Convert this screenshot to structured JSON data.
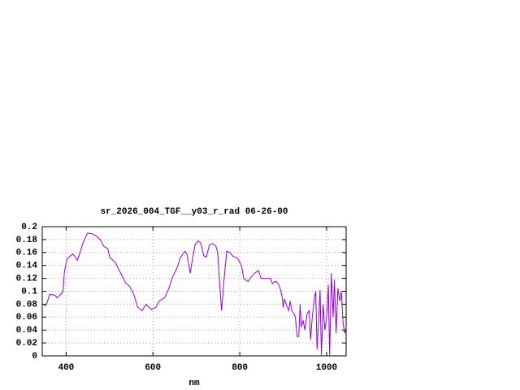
{
  "chart_data": {
    "type": "line",
    "title": "sr_2026_004_TGF__y03_r_rad 06-26-00",
    "x_label": "nm",
    "x": [
      349,
      355,
      362,
      374,
      379,
      387,
      393,
      396,
      402,
      415,
      422,
      426,
      432,
      439,
      449,
      460,
      471,
      481,
      486,
      496,
      501,
      513,
      528,
      537,
      546,
      556,
      565,
      575,
      584,
      596,
      607,
      614,
      627,
      637,
      644,
      652,
      655,
      663,
      674,
      678,
      686,
      691,
      697,
      704,
      710,
      717,
      723,
      730,
      738,
      745,
      749,
      753,
      758,
      764,
      770,
      777,
      785,
      794,
      804,
      809,
      819,
      824,
      834,
      843,
      849,
      860,
      871,
      875,
      881,
      885,
      890,
      895,
      898,
      900,
      903,
      907,
      910,
      913,
      916,
      920,
      925,
      928,
      932,
      936,
      939,
      942,
      946,
      950,
      955,
      960,
      963,
      967,
      972,
      975,
      978,
      982,
      985,
      988,
      992,
      996,
      1000,
      1004,
      1007,
      1011,
      1015,
      1018,
      1022,
      1026,
      1030,
      1034,
      1038,
      1042,
      1045
    ],
    "series": [
      {
        "name": "sr_2026_004_TGF__y03_r_rad",
        "color": "#9400d3",
        "values": [
          0.077,
          0.08,
          0.095,
          0.094,
          0.09,
          0.095,
          0.1,
          0.13,
          0.15,
          0.158,
          0.152,
          0.148,
          0.16,
          0.175,
          0.19,
          0.189,
          0.185,
          0.178,
          0.17,
          0.166,
          0.152,
          0.145,
          0.125,
          0.113,
          0.108,
          0.095,
          0.075,
          0.07,
          0.08,
          0.072,
          0.075,
          0.085,
          0.09,
          0.105,
          0.12,
          0.132,
          0.135,
          0.152,
          0.162,
          0.158,
          0.128,
          0.15,
          0.172,
          0.178,
          0.175,
          0.155,
          0.153,
          0.172,
          0.174,
          0.17,
          0.16,
          0.12,
          0.07,
          0.12,
          0.162,
          0.16,
          0.154,
          0.152,
          0.14,
          0.12,
          0.115,
          0.12,
          0.128,
          0.132,
          0.12,
          0.12,
          0.12,
          0.112,
          0.115,
          0.115,
          0.11,
          0.1,
          0.09,
          0.075,
          0.088,
          0.08,
          0.075,
          0.07,
          0.085,
          0.07,
          0.065,
          0.06,
          0.03,
          0.03,
          0.08,
          0.045,
          0.055,
          0.04,
          0.065,
          0.07,
          0.025,
          0.06,
          0.09,
          0.1,
          0.01,
          0.06,
          0.102,
          0.0,
          0.08,
          0.04,
          0.06,
          0.11,
          0.0,
          0.128,
          0.06,
          0.118,
          0.035,
          0.105,
          0.085,
          0.1,
          0.05,
          0.035,
          0.045
        ]
      }
    ],
    "xlim": [
      345,
      1045
    ],
    "xticks": [
      400,
      600,
      800,
      1000
    ],
    "ylim": [
      0,
      0.2
    ],
    "yticks": [
      0,
      0.02,
      0.04,
      0.06,
      0.08,
      0.1,
      0.12,
      0.14,
      0.16,
      0.18,
      0.2
    ],
    "grid": true
  }
}
